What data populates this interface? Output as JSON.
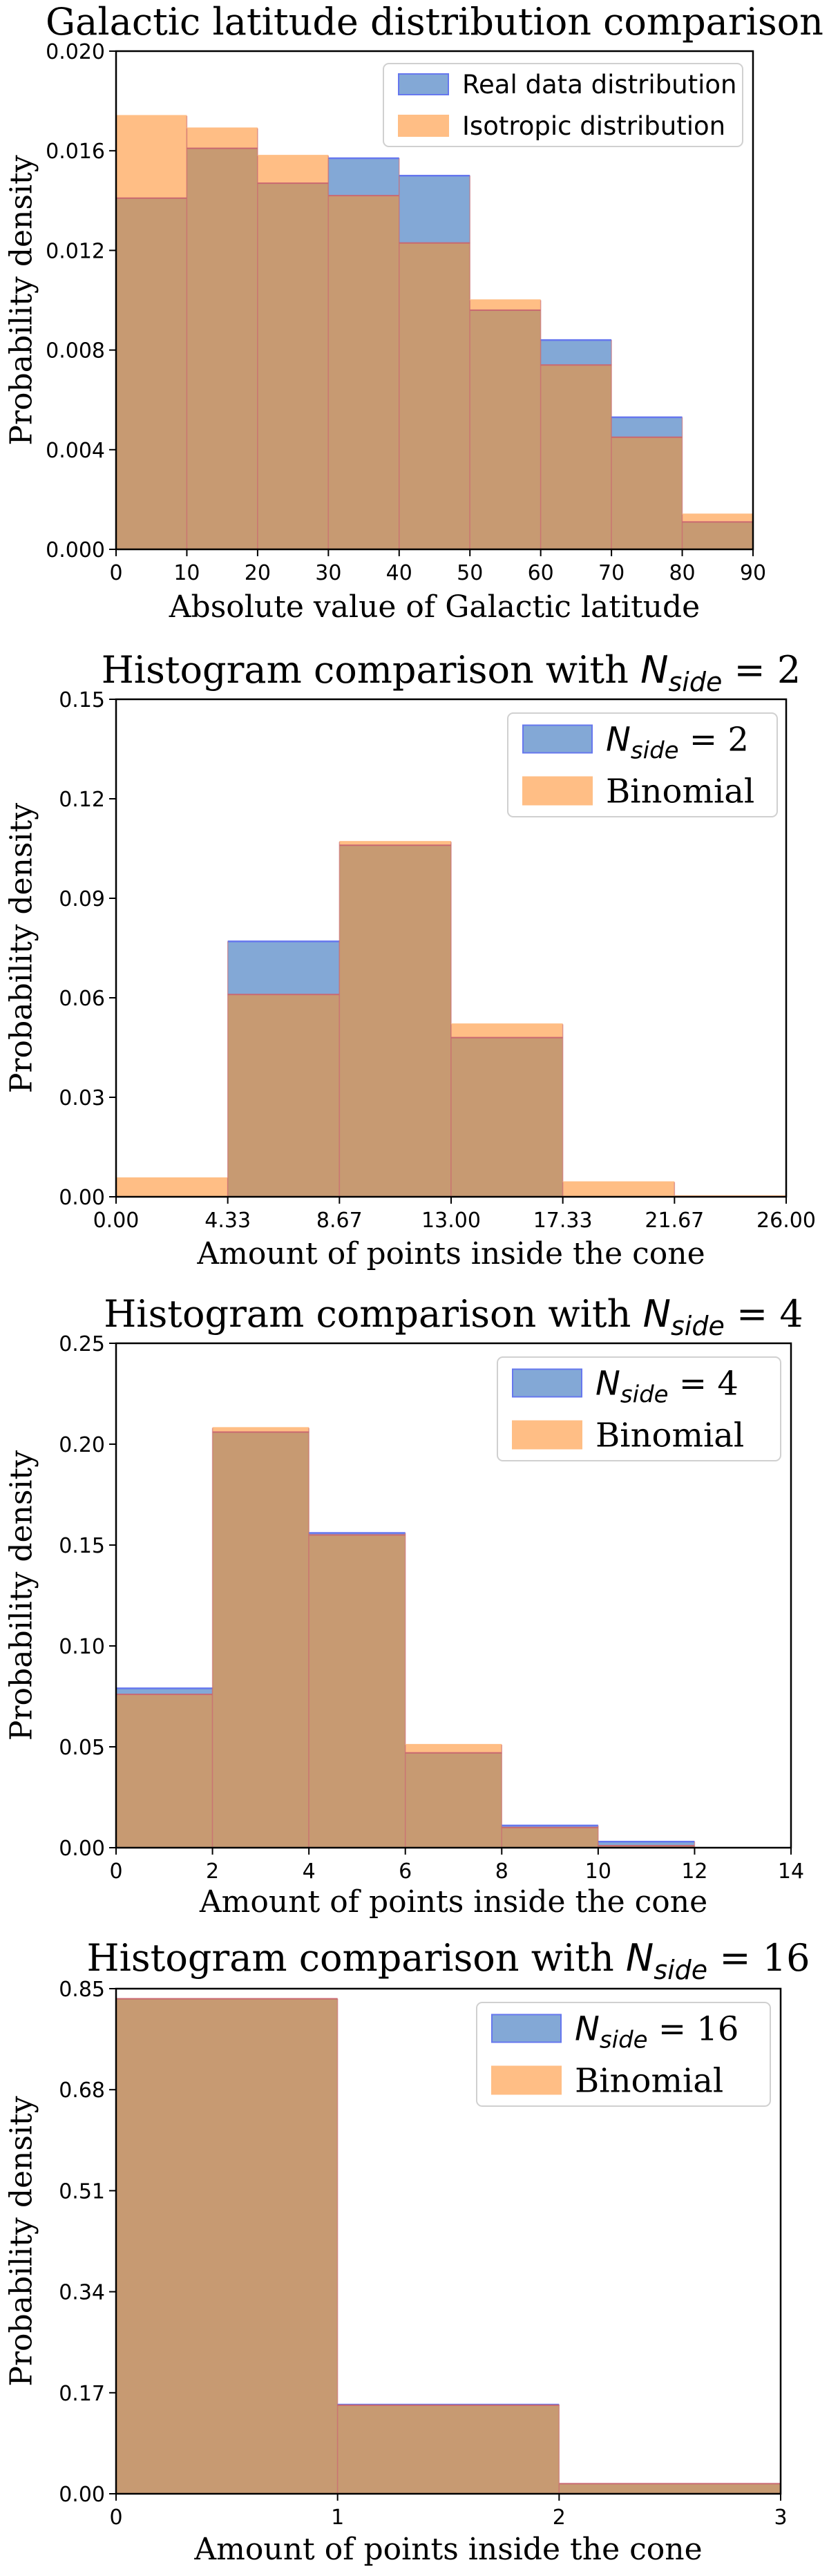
{
  "colors": {
    "blue_fill": "#83A8D6",
    "blue_edge": "#6677EE",
    "orange_fill": "#FFBE85",
    "overlap_fill": "#C79A72",
    "overlap_edge": "#C96870",
    "axis": "#000000"
  },
  "chart_data": [
    {
      "type": "bar",
      "title": "Galactic latitude distribution comparison",
      "xlabel": "Absolute value of Galactic latitude",
      "ylabel": "Probability density",
      "xlim": [
        0,
        90
      ],
      "ylim": [
        0,
        0.02
      ],
      "xticks": [
        0,
        10,
        20,
        30,
        40,
        50,
        60,
        70,
        80,
        90
      ],
      "xtick_labels": [
        "0",
        "10",
        "20",
        "30",
        "40",
        "50",
        "60",
        "70",
        "80",
        "90"
      ],
      "yticks": [
        0,
        0.004,
        0.008,
        0.012,
        0.016,
        0.02
      ],
      "ytick_labels": [
        "0.000",
        "0.004",
        "0.008",
        "0.012",
        "0.016",
        "0.020"
      ],
      "bin_edges": [
        0,
        10,
        20,
        30,
        40,
        50,
        60,
        70,
        80,
        90
      ],
      "legend_position": "top-right",
      "series": [
        {
          "name": "Real data distribution",
          "color": "blue",
          "values": [
            0.0141,
            0.0161,
            0.0147,
            0.0157,
            0.015,
            0.0096,
            0.0084,
            0.0053,
            0.0011
          ]
        },
        {
          "name": "Isotropic distribution",
          "color": "orange",
          "values": [
            0.0174,
            0.0169,
            0.0158,
            0.0142,
            0.0123,
            0.01,
            0.0074,
            0.0045,
            0.0014
          ]
        }
      ]
    },
    {
      "type": "bar",
      "title": "Histogram comparison with",
      "title_math": "N",
      "title_math_sub": "side",
      "title_suffix": " = 2",
      "xlabel": "Amount of points inside the cone",
      "ylabel": "Probability density",
      "xlim": [
        0,
        26
      ],
      "ylim": [
        0,
        0.15
      ],
      "xticks": [
        0,
        4.3333,
        8.6667,
        13,
        17.3333,
        21.6667,
        26
      ],
      "xtick_labels": [
        "0.00",
        "4.33",
        "8.67",
        "13.00",
        "17.33",
        "21.67",
        "26.00"
      ],
      "yticks": [
        0,
        0.03,
        0.06,
        0.09,
        0.12,
        0.15
      ],
      "ytick_labels": [
        "0.00",
        "0.03",
        "0.06",
        "0.09",
        "0.12",
        "0.15"
      ],
      "bin_edges": [
        0,
        4.3333,
        8.6667,
        13,
        17.3333,
        21.6667,
        26
      ],
      "legend_position": "top-right",
      "series": [
        {
          "name": "N",
          "name_sub": "side",
          "name_suffix": " = 2",
          "color": "blue",
          "values": [
            0.0,
            0.077,
            0.106,
            0.048,
            0.0,
            0.0
          ]
        },
        {
          "name": "Binomial",
          "color": "orange",
          "values": [
            0.0056,
            0.061,
            0.107,
            0.052,
            0.0044,
            0.0002
          ]
        }
      ]
    },
    {
      "type": "bar",
      "title": "Histogram comparison with",
      "title_math": "N",
      "title_math_sub": "side",
      "title_suffix": " = 4",
      "xlabel": "Amount of points inside the cone",
      "ylabel": "Probability density",
      "xlim": [
        0,
        14
      ],
      "ylim": [
        0,
        0.25
      ],
      "xticks": [
        0,
        2,
        4,
        6,
        8,
        10,
        12,
        14
      ],
      "xtick_labels": [
        "0",
        "2",
        "4",
        "6",
        "8",
        "10",
        "12",
        "14"
      ],
      "yticks": [
        0,
        0.05,
        0.1,
        0.15,
        0.2,
        0.25
      ],
      "ytick_labels": [
        "0.00",
        "0.05",
        "0.10",
        "0.15",
        "0.20",
        "0.25"
      ],
      "bin_edges": [
        0,
        2,
        4,
        6,
        8,
        10,
        12
      ],
      "legend_position": "top-right",
      "series": [
        {
          "name": "N",
          "name_sub": "side",
          "name_suffix": " = 4",
          "color": "blue",
          "values": [
            0.079,
            0.206,
            0.156,
            0.047,
            0.011,
            0.003
          ]
        },
        {
          "name": "Binomial",
          "color": "orange",
          "values": [
            0.076,
            0.208,
            0.155,
            0.051,
            0.01,
            0.001
          ]
        }
      ]
    },
    {
      "type": "bar",
      "title": "Histogram comparison with",
      "title_math": "N",
      "title_math_sub": "side",
      "title_suffix": " = 16",
      "xlabel": "Amount of points inside the cone",
      "ylabel": "Probability density",
      "xlim": [
        0,
        3
      ],
      "ylim": [
        0,
        0.85
      ],
      "xticks": [
        0,
        1,
        2,
        3
      ],
      "xtick_labels": [
        "0",
        "1",
        "2",
        "3"
      ],
      "yticks": [
        0,
        0.17,
        0.34,
        0.51,
        0.68,
        0.85
      ],
      "ytick_labels": [
        "0.00",
        "0.17",
        "0.34",
        "0.51",
        "0.68",
        "0.85"
      ],
      "bin_edges": [
        0,
        1,
        2,
        3
      ],
      "legend_position": "top-right",
      "series": [
        {
          "name": "N",
          "name_sub": "side",
          "name_suffix": " = 16",
          "color": "blue",
          "values": [
            0.833,
            0.15,
            0.017
          ]
        },
        {
          "name": "Binomial",
          "color": "orange",
          "values": [
            0.833,
            0.149,
            0.017
          ]
        }
      ]
    }
  ]
}
